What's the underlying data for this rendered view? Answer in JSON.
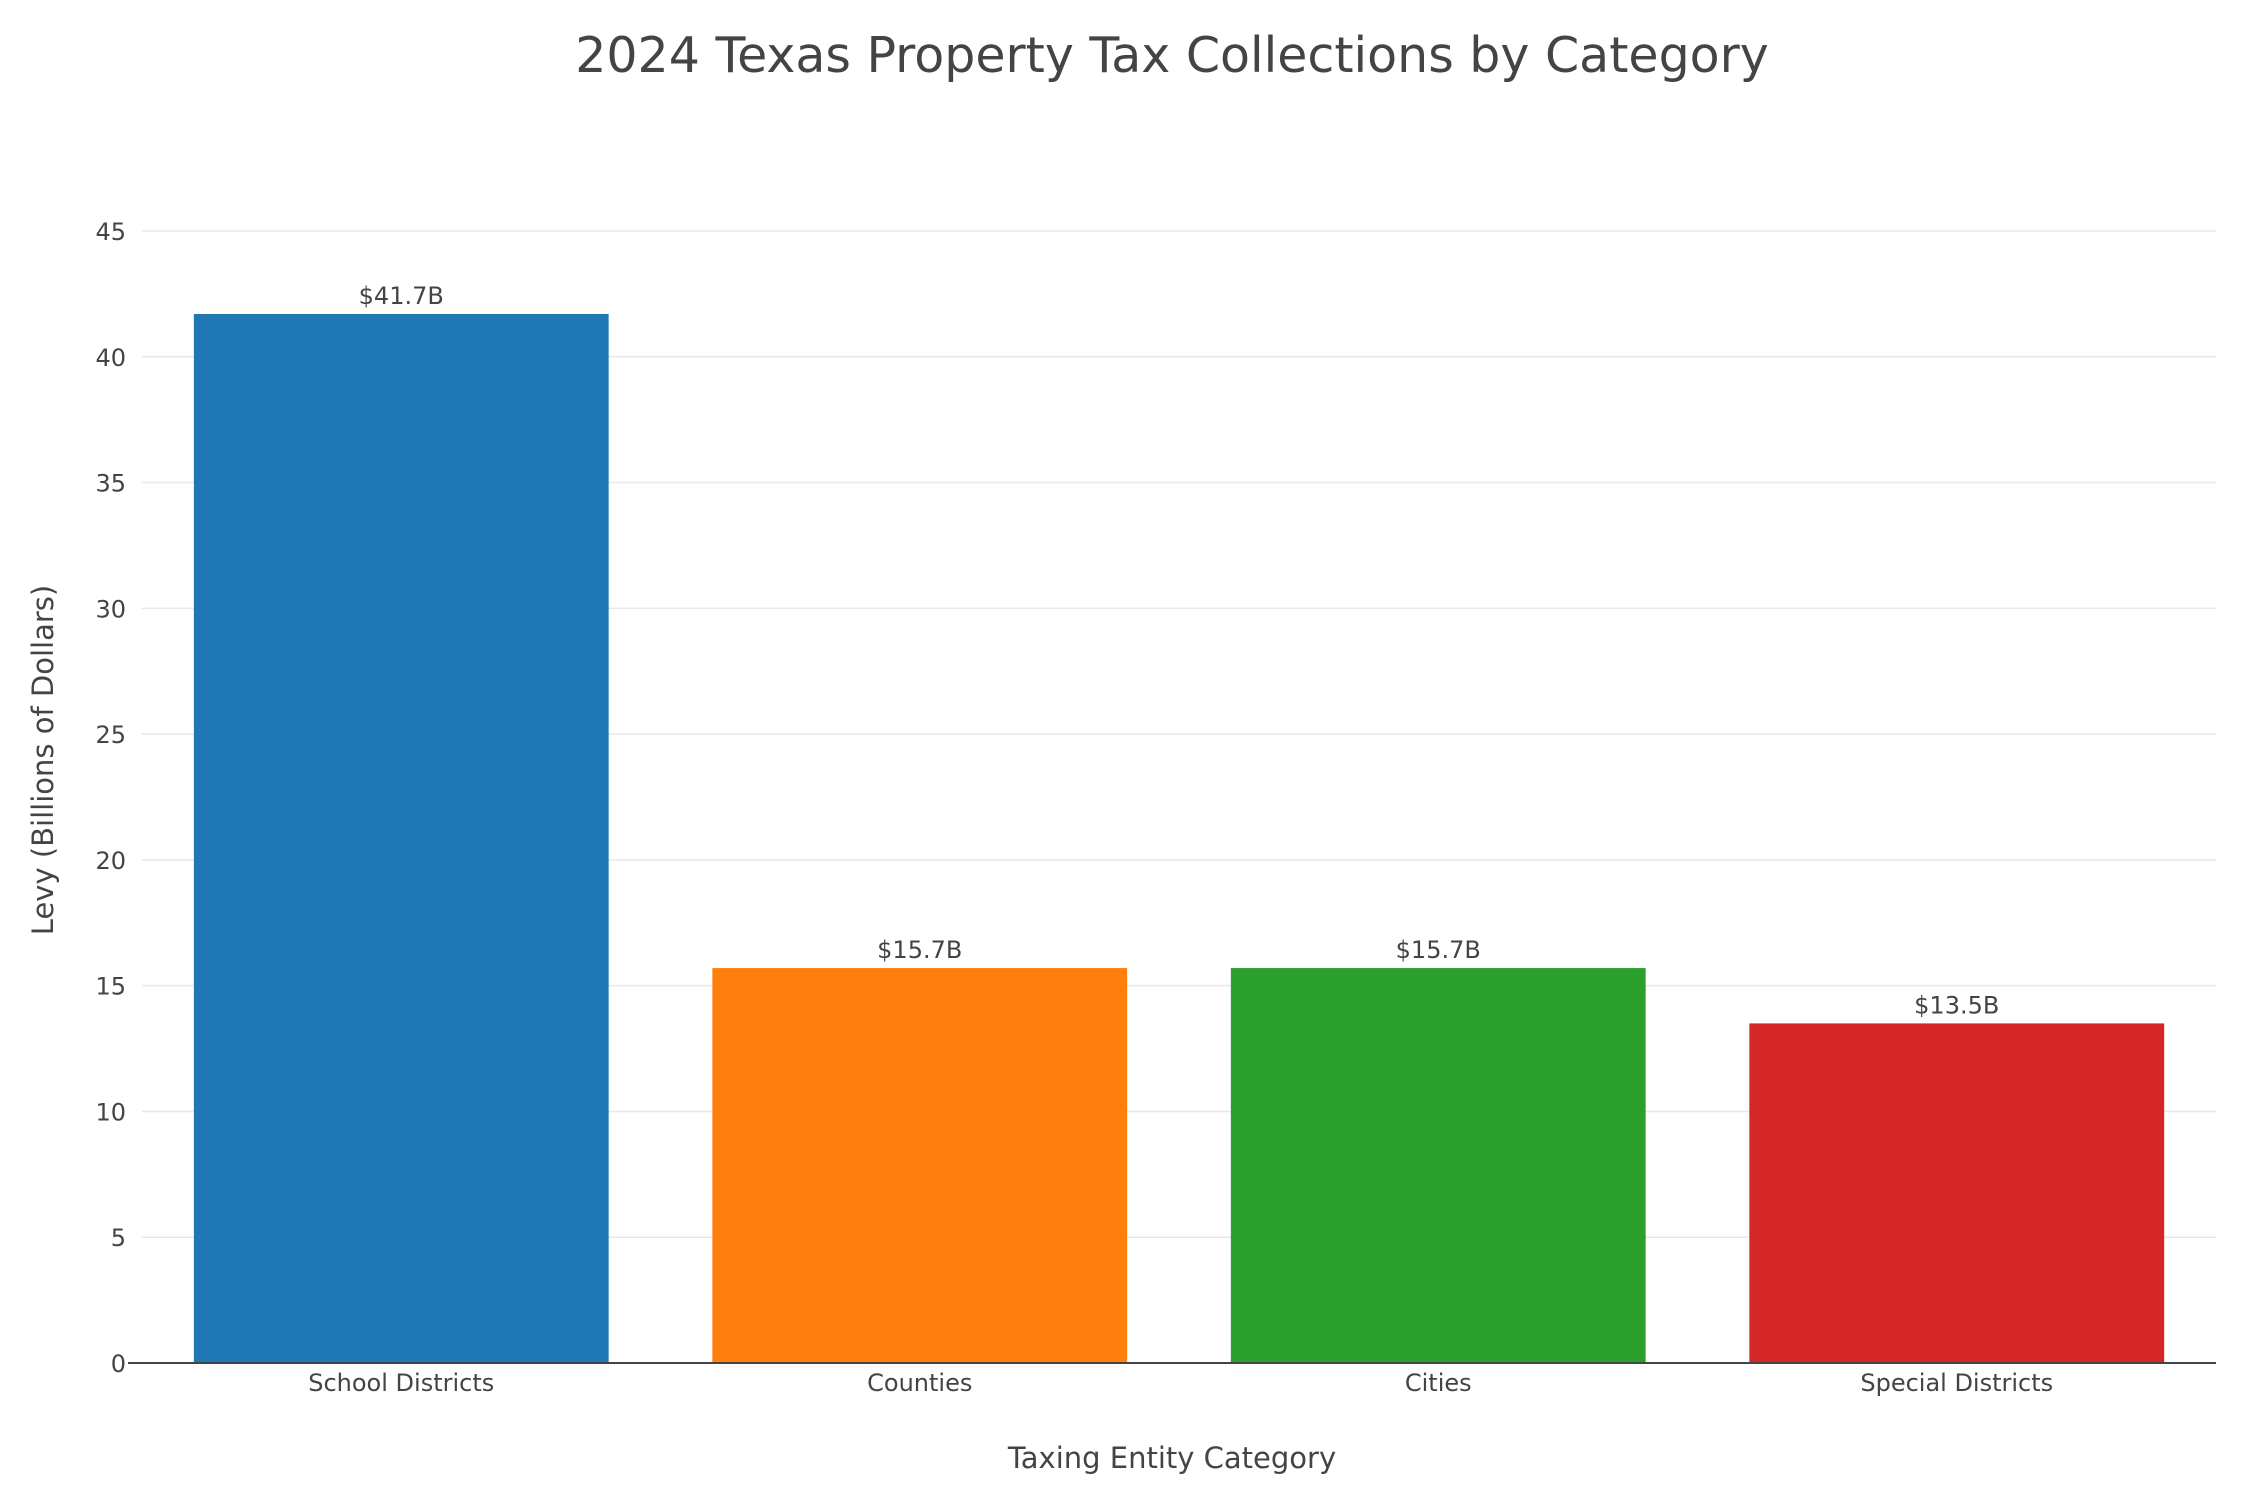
{
  "chart_data": {
    "type": "bar",
    "title": "2024 Texas Property Tax Collections by Category",
    "xlabel": "Taxing Entity Category",
    "ylabel": "Levy (Billions of Dollars)",
    "categories": [
      "School Districts",
      "Counties",
      "Cities",
      "Special Districts"
    ],
    "values": [
      41.7,
      15.7,
      15.7,
      13.5
    ],
    "data_labels": [
      "$41.7B",
      "$15.7B",
      "$15.7B",
      "$13.5B"
    ],
    "colors": [
      "#1f77b4",
      "#ff7f0e",
      "#2ca02c",
      "#d62728"
    ],
    "ylim": [
      0,
      45
    ],
    "yticks": [
      0,
      5,
      10,
      15,
      20,
      25,
      30,
      35,
      40,
      45
    ],
    "grid": true,
    "legend": "none"
  }
}
